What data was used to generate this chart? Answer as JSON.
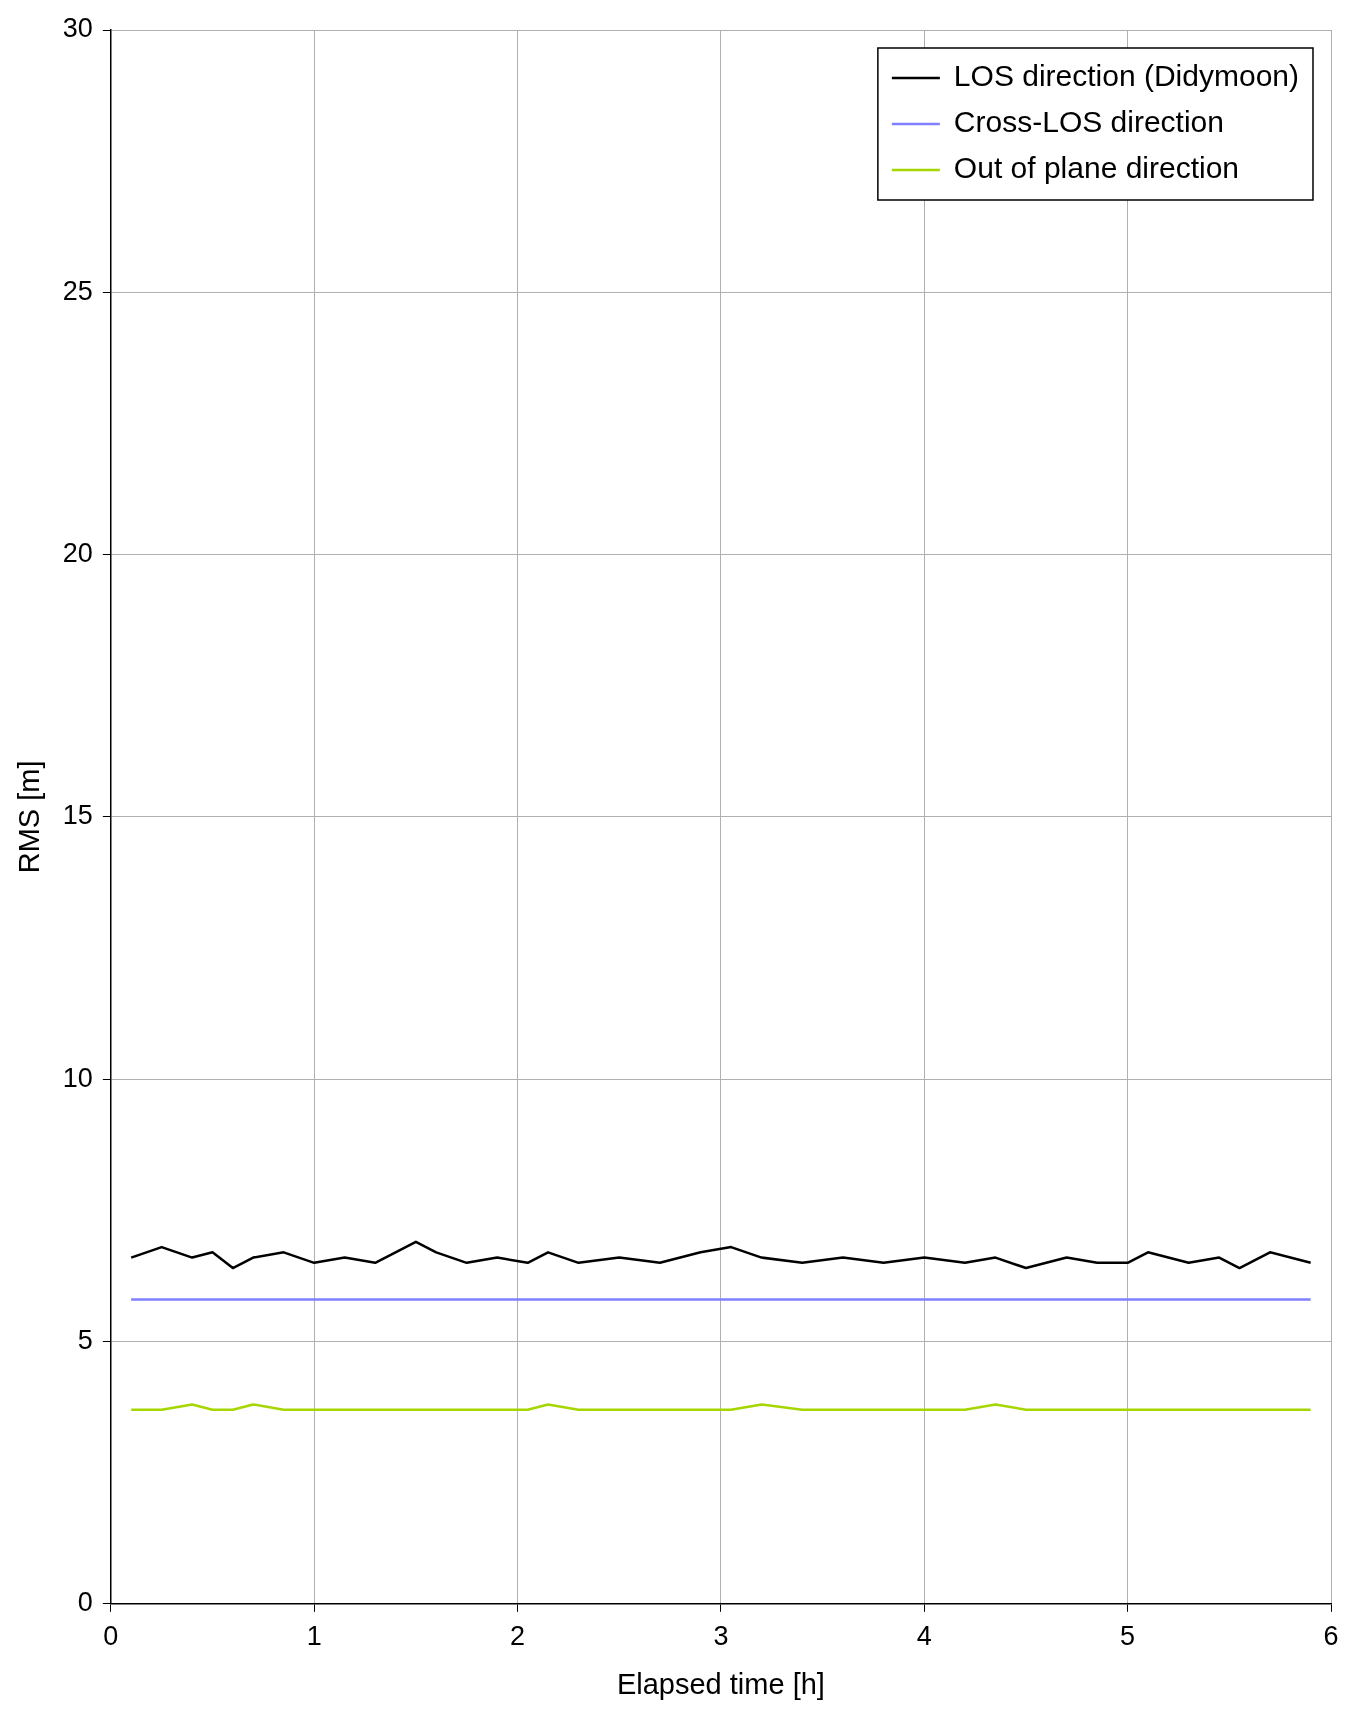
{
  "chart_data": {
    "type": "line",
    "xlabel": "Elapsed time [h]",
    "ylabel": "RMS [m]",
    "x": [
      0.1,
      0.25,
      0.4,
      0.5,
      0.6,
      0.7,
      0.85,
      1.0,
      1.15,
      1.3,
      1.4,
      1.5,
      1.6,
      1.75,
      1.9,
      2.05,
      2.15,
      2.3,
      2.5,
      2.7,
      2.9,
      3.05,
      3.2,
      3.4,
      3.6,
      3.8,
      4.0,
      4.2,
      4.35,
      4.5,
      4.7,
      4.85,
      5.0,
      5.1,
      5.3,
      5.45,
      5.55,
      5.7,
      5.9
    ],
    "series": [
      {
        "name": "LOS direction (Didymoon)",
        "color": "#000000",
        "values": [
          6.6,
          6.8,
          6.6,
          6.7,
          6.4,
          6.6,
          6.7,
          6.5,
          6.6,
          6.5,
          6.7,
          6.9,
          6.7,
          6.5,
          6.6,
          6.5,
          6.7,
          6.5,
          6.6,
          6.5,
          6.7,
          6.8,
          6.6,
          6.5,
          6.6,
          6.5,
          6.6,
          6.5,
          6.6,
          6.4,
          6.6,
          6.5,
          6.5,
          6.7,
          6.5,
          6.6,
          6.4,
          6.7,
          6.5
        ]
      },
      {
        "name": "Cross-LOS direction",
        "color": "#7f7fff",
        "values": [
          5.8,
          5.8,
          5.8,
          5.8,
          5.8,
          5.8,
          5.8,
          5.8,
          5.8,
          5.8,
          5.8,
          5.8,
          5.8,
          5.8,
          5.8,
          5.8,
          5.8,
          5.8,
          5.8,
          5.8,
          5.8,
          5.8,
          5.8,
          5.8,
          5.8,
          5.8,
          5.8,
          5.8,
          5.8,
          5.8,
          5.8,
          5.8,
          5.8,
          5.8,
          5.8,
          5.8,
          5.8,
          5.8,
          5.8
        ]
      },
      {
        "name": "Out of plane direction",
        "color": "#a6d600",
        "values": [
          3.7,
          3.7,
          3.8,
          3.7,
          3.7,
          3.8,
          3.7,
          3.7,
          3.7,
          3.7,
          3.7,
          3.7,
          3.7,
          3.7,
          3.7,
          3.7,
          3.8,
          3.7,
          3.7,
          3.7,
          3.7,
          3.7,
          3.8,
          3.7,
          3.7,
          3.7,
          3.7,
          3.7,
          3.8,
          3.7,
          3.7,
          3.7,
          3.7,
          3.7,
          3.7,
          3.7,
          3.7,
          3.7,
          3.7
        ]
      }
    ],
    "xlim": [
      0,
      6
    ],
    "xticks": [
      0,
      1,
      2,
      3,
      4,
      5,
      6
    ],
    "ylim": [
      0,
      30
    ],
    "yticks": [
      0,
      5,
      10,
      15,
      20,
      25,
      30
    ],
    "grid": true,
    "legend": "top right",
    "marker": "none",
    "line_style": "solid"
  }
}
